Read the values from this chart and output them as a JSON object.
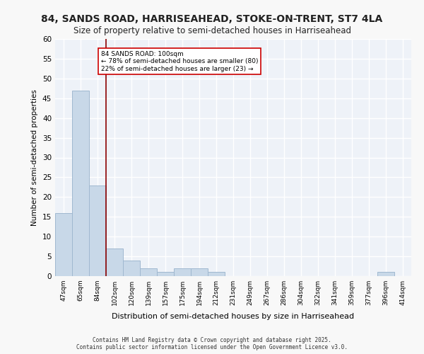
{
  "title_line1": "84, SANDS ROAD, HARRISEAHEAD, STOKE-ON-TRENT, ST7 4LA",
  "title_line2": "Size of property relative to semi-detached houses in Harriseahead",
  "xlabel": "Distribution of semi-detached houses by size in Harriseahead",
  "ylabel": "Number of semi-detached properties",
  "categories": [
    "47sqm",
    "65sqm",
    "84sqm",
    "102sqm",
    "120sqm",
    "139sqm",
    "157sqm",
    "175sqm",
    "194sqm",
    "212sqm",
    "231sqm",
    "249sqm",
    "267sqm",
    "286sqm",
    "304sqm",
    "322sqm",
    "341sqm",
    "359sqm",
    "377sqm",
    "396sqm",
    "414sqm"
  ],
  "values": [
    16,
    47,
    23,
    7,
    4,
    2,
    1,
    2,
    2,
    1,
    0,
    0,
    0,
    0,
    0,
    0,
    0,
    0,
    0,
    1,
    0
  ],
  "bar_color": "#c8d8e8",
  "bar_edge_color": "#a0b8d0",
  "vline_x": 2.5,
  "vline_color": "#8b0000",
  "annotation_text": "84 SANDS ROAD: 100sqm\n← 78% of semi-detached houses are smaller (80)\n22% of semi-detached houses are larger (23) →",
  "annotation_box_color": "#ffffff",
  "annotation_box_edge_color": "#cc0000",
  "ylim": [
    0,
    60
  ],
  "yticks": [
    0,
    5,
    10,
    15,
    20,
    25,
    30,
    35,
    40,
    45,
    50,
    55,
    60
  ],
  "background_color": "#eef2f8",
  "grid_color": "#ffffff",
  "footer_line1": "Contains HM Land Registry data © Crown copyright and database right 2025.",
  "footer_line2": "Contains public sector information licensed under the Open Government Licence v3.0."
}
